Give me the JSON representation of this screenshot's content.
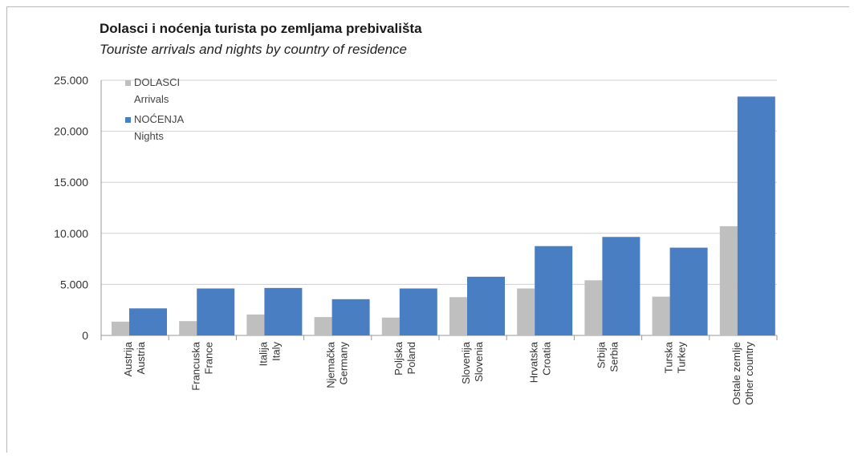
{
  "chart_data": {
    "type": "bar",
    "title": "Dolasci i noćenja turista po zemljama prebivališta",
    "subtitle": "Touriste arrivals and nights by country of residence",
    "categories": [
      [
        "Austrija",
        "Austria"
      ],
      [
        "Francuska",
        "France"
      ],
      [
        "Italija",
        "Italy"
      ],
      [
        "Njemačka",
        "Germany"
      ],
      [
        "Poljska",
        "Poland"
      ],
      [
        "Slovenija",
        "Slovenia"
      ],
      [
        "Hrvatska",
        "Croatia"
      ],
      [
        "Srbija",
        "Serbia"
      ],
      [
        "Turska",
        "Turkey"
      ],
      [
        "Ostale zemlje",
        "Other country"
      ]
    ],
    "series": [
      {
        "name": "DOLASCI",
        "name2": "Arrivals",
        "color": "#bfbfbf",
        "values": [
          1350,
          1400,
          2050,
          1800,
          1750,
          3750,
          4600,
          5400,
          3800,
          10700
        ]
      },
      {
        "name": "NOĆENJA",
        "name2": "Nights",
        "color": "#4a7ec2",
        "values": [
          2650,
          4600,
          4650,
          3550,
          4600,
          5750,
          8750,
          9650,
          8600,
          23400
        ]
      }
    ],
    "ylim": [
      0,
      25000
    ],
    "yticks": [
      "0",
      "5.000",
      "10.000",
      "15.000",
      "20.000",
      "25.000"
    ],
    "grid": true,
    "legend_position": "top-left"
  }
}
